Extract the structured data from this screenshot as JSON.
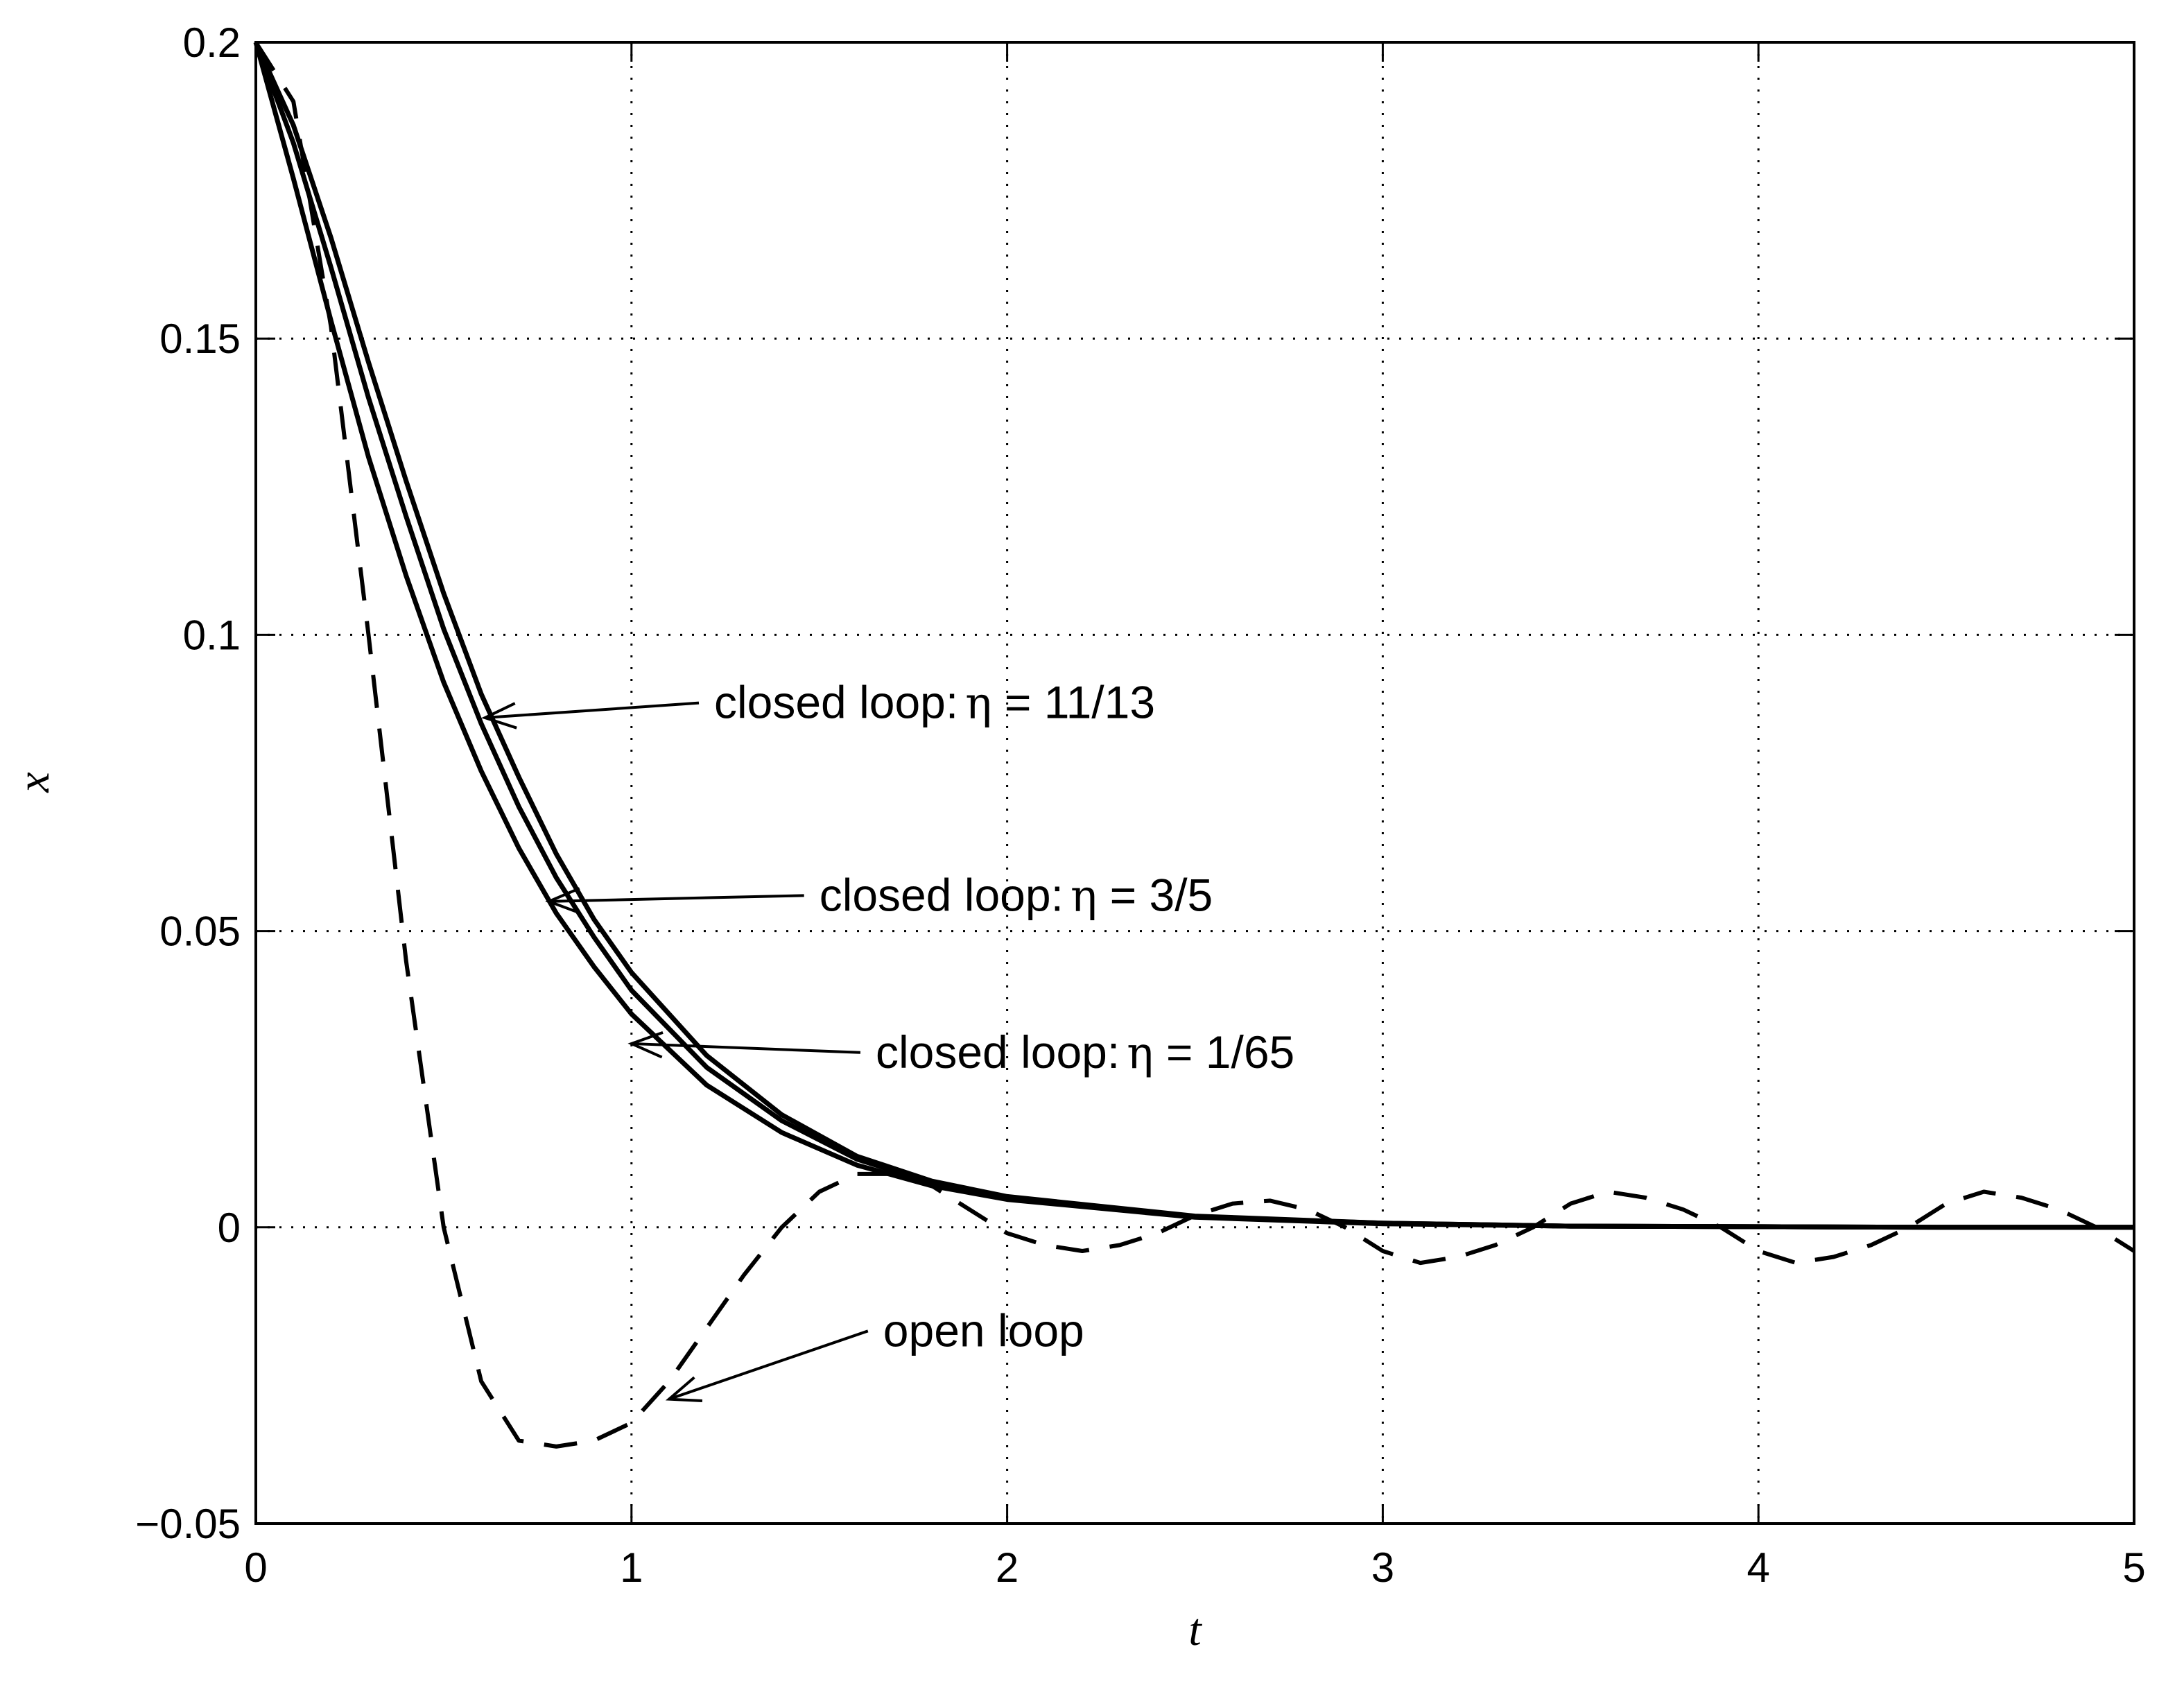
{
  "chart_data": {
    "type": "line",
    "title": "",
    "xlabel": "t",
    "ylabel": "x",
    "xlim": [
      0,
      5
    ],
    "ylim": [
      -0.05,
      0.2
    ],
    "xticks": [
      0,
      1,
      2,
      3,
      4,
      5
    ],
    "xtick_labels": [
      "0",
      "1",
      "2",
      "3",
      "4",
      "5"
    ],
    "yticks": [
      -0.05,
      0,
      0.05,
      0.1,
      0.15,
      0.2
    ],
    "ytick_labels": [
      "−0.05",
      "0",
      "0.05",
      "0.1",
      "0.15",
      "0.2"
    ],
    "grid": true,
    "grid_style": "dotted",
    "series": [
      {
        "style": "solid",
        "x": [
          0,
          0.1,
          0.2,
          0.3,
          0.4,
          0.5,
          0.6,
          0.7,
          0.8,
          0.9,
          1.0,
          1.2,
          1.4,
          1.6,
          1.8,
          2.0,
          2.5,
          3.0,
          3.5,
          4.0,
          4.5,
          5.0
        ],
        "y": [
          0.2,
          0.186,
          0.167,
          0.146,
          0.126,
          0.107,
          0.09,
          0.076,
          0.063,
          0.052,
          0.043,
          0.029,
          0.019,
          0.012,
          0.0078,
          0.0052,
          0.0019,
          0.0007,
          0.0002,
          0.0001,
          0.0,
          0.0
        ]
      },
      {
        "style": "solid",
        "x": [
          0,
          0.1,
          0.2,
          0.3,
          0.4,
          0.5,
          0.6,
          0.7,
          0.8,
          0.9,
          1.0,
          1.2,
          1.4,
          1.6,
          1.8,
          2.0,
          2.5,
          3.0,
          3.5,
          4.0,
          4.5,
          5.0
        ],
        "y": [
          0.2,
          0.183,
          0.162,
          0.14,
          0.12,
          0.101,
          0.085,
          0.071,
          0.059,
          0.049,
          0.04,
          0.027,
          0.018,
          0.0115,
          0.0075,
          0.005,
          0.0018,
          0.0007,
          0.0002,
          0.0001,
          0.0,
          0.0
        ]
      },
      {
        "style": "solid",
        "x": [
          0,
          0.1,
          0.2,
          0.3,
          0.4,
          0.5,
          0.6,
          0.7,
          0.8,
          0.9,
          1.0,
          1.2,
          1.4,
          1.6,
          1.8,
          2.0,
          2.5,
          3.0,
          3.5,
          4.0,
          4.5,
          5.0
        ],
        "y": [
          0.2,
          0.177,
          0.153,
          0.13,
          0.11,
          0.092,
          0.077,
          0.064,
          0.053,
          0.044,
          0.036,
          0.024,
          0.016,
          0.0105,
          0.007,
          0.0047,
          0.0017,
          0.0006,
          0.0002,
          0.0001,
          0.0,
          0.0
        ]
      },
      {
        "style": "dashed",
        "x": [
          0,
          0.1,
          0.2,
          0.3,
          0.4,
          0.5,
          0.6,
          0.7,
          0.8,
          0.9,
          1.0,
          1.1,
          1.2,
          1.3,
          1.4,
          1.5,
          1.6,
          1.7,
          1.8,
          1.9,
          2.0,
          2.1,
          2.2,
          2.3,
          2.4,
          2.5,
          2.6,
          2.7,
          2.8,
          2.9,
          3.0,
          3.1,
          3.2,
          3.3,
          3.4,
          3.5,
          3.6,
          3.7,
          3.8,
          3.9,
          4.0,
          4.1,
          4.2,
          4.3,
          4.4,
          4.5,
          4.6,
          4.7,
          4.8,
          4.9,
          5.0
        ],
        "y": [
          0.2,
          0.19,
          0.152,
          0.1,
          0.045,
          0.0,
          -0.026,
          -0.036,
          -0.037,
          -0.036,
          -0.033,
          -0.026,
          -0.017,
          -0.008,
          0.0,
          0.006,
          0.009,
          0.009,
          0.007,
          0.003,
          -0.001,
          -0.003,
          -0.004,
          -0.003,
          -0.001,
          0.002,
          0.004,
          0.0045,
          0.003,
          0.0,
          -0.004,
          -0.006,
          -0.005,
          -0.003,
          0.0,
          0.004,
          0.006,
          0.005,
          0.003,
          0.0,
          -0.004,
          -0.006,
          -0.005,
          -0.003,
          0.0,
          0.004,
          0.006,
          0.005,
          0.003,
          0.0,
          -0.004
        ]
      }
    ],
    "annotations": [
      {
        "text": "closed loop:",
        "eta": "η",
        "rest": " = 11/13",
        "text_at": [
          1.22,
          0.0885
        ],
        "arrow_to": [
          0.61,
          0.086
        ]
      },
      {
        "text": "closed loop:",
        "eta": "η",
        "rest": " = 3/5",
        "text_at": [
          1.5,
          0.056
        ],
        "arrow_to": [
          0.78,
          0.055
        ]
      },
      {
        "text": "closed loop:",
        "eta": "η",
        "rest": " = 1/65",
        "text_at": [
          1.65,
          0.0295
        ],
        "arrow_to": [
          1.0,
          0.031
        ]
      },
      {
        "text": "open loop",
        "eta": "",
        "rest": "",
        "text_at": [
          1.67,
          -0.0175
        ],
        "arrow_to": [
          1.1,
          -0.029
        ]
      }
    ]
  }
}
